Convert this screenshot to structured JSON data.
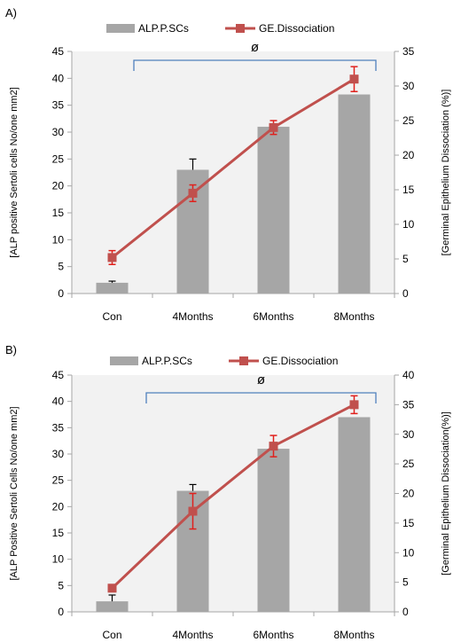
{
  "colors": {
    "bar": "#a6a6a6",
    "line": "#c0504d",
    "plot_bg": "#f2f2f2",
    "bracket": "#4f81bd"
  },
  "chart_data": [
    {
      "panel_label": "A)",
      "type": "bar+line",
      "categories": [
        "Con",
        "4Months",
        "6Months",
        "8Months"
      ],
      "legend": [
        "ALP.P.SCs",
        "GE.Dissociation"
      ],
      "legend_position": "top",
      "series": [
        {
          "name": "ALP.P.SCs",
          "type": "bar",
          "axis": "left",
          "values": [
            2,
            23,
            31,
            37
          ],
          "errors": [
            0.3,
            2,
            0,
            0
          ]
        },
        {
          "name": "GE.Dissociation",
          "type": "line",
          "axis": "right",
          "values": [
            5.2,
            14.5,
            24,
            31
          ],
          "errors": [
            1,
            1.2,
            1,
            1.8
          ]
        }
      ],
      "ylabel_left": "[ALP positive Sertoli cells No/one mm2]",
      "ylabel_right": "[Germinal Epithelium Dissociation (%)]",
      "ylim_left": [
        0,
        45
      ],
      "yticks_left": [
        0,
        5,
        10,
        15,
        20,
        25,
        30,
        35,
        40,
        45
      ],
      "ylim_right": [
        0,
        35
      ],
      "yticks_right": [
        0,
        5,
        10,
        15,
        20,
        25,
        30,
        35
      ],
      "annotation": "ø",
      "grid": false
    },
    {
      "panel_label": "B)",
      "type": "bar+line",
      "categories": [
        "Con",
        "4Months",
        "6Months",
        "8Months"
      ],
      "legend": [
        "ALP.P.SCs",
        "GE.Dissociation"
      ],
      "legend_position": "top",
      "series": [
        {
          "name": "ALP.P.SCs",
          "type": "bar",
          "axis": "left",
          "values": [
            2,
            23,
            31,
            37
          ],
          "errors": [
            1.2,
            1.2,
            0,
            0
          ]
        },
        {
          "name": "GE.Dissociation",
          "type": "line",
          "axis": "right",
          "values": [
            4,
            17,
            28,
            35
          ],
          "errors": [
            0.4,
            3,
            1.8,
            1.5
          ]
        }
      ],
      "ylabel_left": "[ALP Positive Sertoli Cells No/one mm2]",
      "ylabel_right": "[Germinal Epithelium Dissociation(%)]",
      "ylim_left": [
        0,
        45
      ],
      "yticks_left": [
        0,
        5,
        10,
        15,
        20,
        25,
        30,
        35,
        40,
        45
      ],
      "ylim_right": [
        0,
        40
      ],
      "yticks_right": [
        0,
        5,
        10,
        15,
        20,
        25,
        30,
        35,
        40
      ],
      "annotation": "ø",
      "grid": false
    }
  ]
}
